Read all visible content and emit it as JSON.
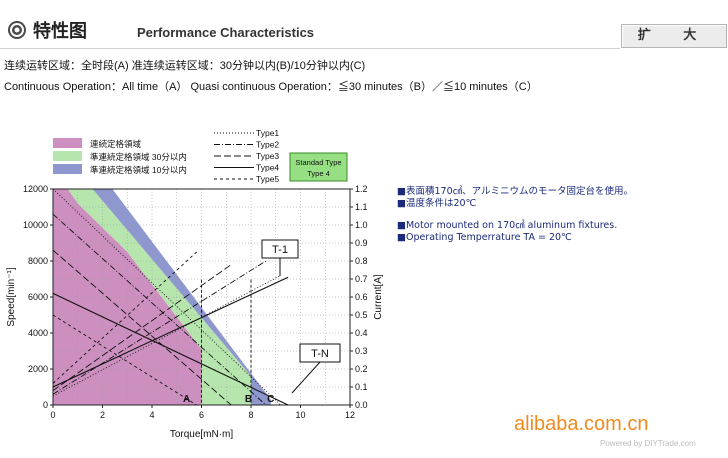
{
  "header": {
    "title_cn": "特性图",
    "title_en": "Performance Characteristics",
    "expand_label": "扩 大",
    "icon": "gear-icon"
  },
  "description": {
    "line_cn": "连续运转区域：全时段(A)   准连续运转区域：30分钟以内(B)/10分钟以内(C)",
    "line_en": "Continuous Operation：All time（A）   Quasi continuous Operation：≦30 minutes（B）／≦10 minutes（C）"
  },
  "notes": {
    "jp1": "■表面積170㎠、アルミニウムのモータ固定台を使用。",
    "jp2": "■温度条件は20℃",
    "en1": "■Motor mounted on 170㎠ aluminum fixtures.",
    "en2": "■Operating Temperrature TA = 20℃"
  },
  "watermark": {
    "site": "alibaba.com.cn",
    "credit": "Powered by DIYTrade.com"
  },
  "chart_data": {
    "type": "line",
    "xlabel": "Torque[mN·m]",
    "ylabel": "Speed[min⁻¹]",
    "y2label": "Current[A]",
    "xlim": [
      0,
      12
    ],
    "ylim": [
      0,
      12000
    ],
    "y2lim": [
      0,
      1.2
    ],
    "xticks": [
      "0",
      "2",
      "4",
      "6",
      "8",
      "10",
      "12"
    ],
    "yticks": [
      "0",
      "2000",
      "4000",
      "6000",
      "8000",
      "10000",
      "12000"
    ],
    "y2ticks": [
      "0.0",
      "0.1",
      "0.2",
      "0.3",
      "0.4",
      "0.5",
      "0.6",
      "0.7",
      "0.8",
      "0.9",
      "1.0",
      "1.1",
      "1.2"
    ],
    "grid": true,
    "legend_regions": [
      {
        "label": "連続定格領域",
        "color": "#cc8fbf"
      },
      {
        "label": "準連続定格領域 30分以内",
        "color": "#b6e6ad"
      },
      {
        "label": "準連続定格領域 10分以内",
        "color": "#8f97cf"
      }
    ],
    "legend_types": [
      {
        "label": "Type1",
        "dash": "1,2"
      },
      {
        "label": "Type2",
        "dash": "6,2,1,2"
      },
      {
        "label": "Type3",
        "dash": "7,3"
      },
      {
        "label": "Type4",
        "dash": ""
      },
      {
        "label": "Type5",
        "dash": "3,3"
      }
    ],
    "standard_type": {
      "line1": "Standad Type",
      "line2": "Type 4"
    },
    "zone_labels": [
      "A",
      "B",
      "C"
    ],
    "zone_rated_torque": {
      "A": 6.0,
      "B": 8.0
    },
    "callouts": {
      "upper": "T-1",
      "lower": "T-N"
    },
    "regions": {
      "continuous": [
        [
          0,
          12000
        ],
        [
          0,
          0
        ],
        [
          6.0,
          0
        ],
        [
          6.0,
          3100
        ],
        [
          3.0,
          8500
        ],
        [
          1.0,
          11200
        ],
        [
          0.6,
          12000
        ]
      ],
      "quasi_30min": [
        [
          0.6,
          12000
        ],
        [
          1.0,
          11200
        ],
        [
          3.0,
          8500
        ],
        [
          6.0,
          3100
        ],
        [
          6.0,
          0
        ],
        [
          8.0,
          0
        ],
        [
          8.0,
          1600
        ],
        [
          1.6,
          12000
        ]
      ],
      "quasi_10min": [
        [
          1.6,
          12000
        ],
        [
          8.0,
          1600
        ],
        [
          8.0,
          0
        ],
        [
          8.8,
          0
        ],
        [
          8.8,
          300
        ],
        [
          2.4,
          12000
        ]
      ]
    },
    "series": [
      {
        "name": "Type1",
        "kind": "speed",
        "x": [
          0,
          9.2
        ],
        "y": [
          12000,
          0
        ]
      },
      {
        "name": "Type1",
        "kind": "current",
        "x": [
          0,
          9.2
        ],
        "y": [
          0.05,
          0.72
        ]
      },
      {
        "name": "Type2",
        "kind": "speed",
        "x": [
          0,
          8.6
        ],
        "y": [
          10600,
          0
        ]
      },
      {
        "name": "Type2",
        "kind": "current",
        "x": [
          0,
          8.6
        ],
        "y": [
          0.06,
          0.8
        ]
      },
      {
        "name": "Type3",
        "kind": "speed",
        "x": [
          0,
          7.2
        ],
        "y": [
          8600,
          0
        ]
      },
      {
        "name": "Type3",
        "kind": "current",
        "x": [
          0,
          7.2
        ],
        "y": [
          0.08,
          0.78
        ]
      },
      {
        "name": "Type4",
        "kind": "speed",
        "x": [
          0,
          9.5
        ],
        "y": [
          6200,
          0
        ]
      },
      {
        "name": "Type4",
        "kind": "current",
        "x": [
          0,
          9.5
        ],
        "y": [
          0.1,
          0.71
        ]
      },
      {
        "name": "Type5",
        "kind": "speed",
        "x": [
          0,
          5.8
        ],
        "y": [
          5000,
          0
        ]
      },
      {
        "name": "Type5",
        "kind": "current",
        "x": [
          0,
          5.8
        ],
        "y": [
          0.12,
          0.85
        ]
      }
    ]
  }
}
